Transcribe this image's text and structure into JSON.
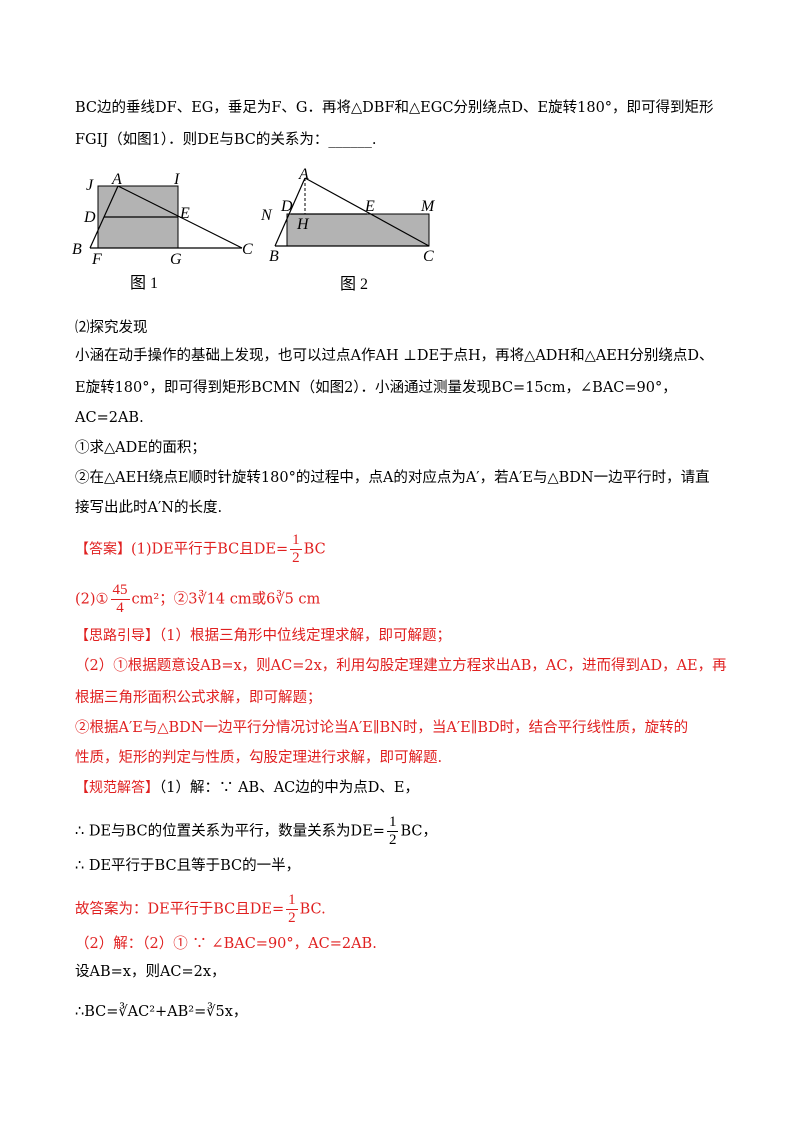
{
  "lines": {
    "l1": "BC边的垂线DF、EG，垂足为F、G．再将△DBF和△EGC分别绕点D、E旋转180°，即可得到矩形",
    "l2": "FGIJ（如图1）．则DE与BC的关系为：______.",
    "l3": "⑵探究发现",
    "l4": "小涵在动手操作的基础上发现，也可以过点A作AH ⊥DE于点H，再将△ADH和△AEH分别绕点D、",
    "l5": "E旋转180°，即可得到矩形BCMN（如图2）．小涵通过测量发现BC=15cm，∠BAC=90°，",
    "l6": "AC=2AB.",
    "l7": "①求△ADE的面积；",
    "l8": "②在△AEH绕点E顺时针旋转180°的过程中，点A的对应点为A′，若A′E与△BDN一边平行时，请直",
    "l9": "接写出此时A′N的长度.",
    "answer_tag": "【答案】",
    "answer1": "(1)DE平行于BC且DE=",
    "answer1_frac_num": "1",
    "answer1_frac_den": "2",
    "answer1_tail": "BC",
    "answer2_pre": "(2)①",
    "answer2_frac_num": "45",
    "answer2_frac_den": "4",
    "answer2_tail": "cm²；②3∛14 cm或6∛5 cm",
    "hint_tag": "【思路引导】",
    "hint1": "（1）根据三角形中位线定理求解，即可解题；",
    "hint2": "（2）①根据题意设AB=x，则AC=2x，利用勾股定理建立方程求出AB，AC，进而得到AD，AE，再",
    "hint3": "根据三角形面积公式求解，即可解题；",
    "hint4": "②根据A′E与△BDN一边平行分情况讨论当A′E∥BN时，当A′E∥BD时，结合平行线性质，旋转的",
    "hint5": "性质，矩形的判定与性质，勾股定理进行求解，即可解题.",
    "sol_tag": "【规范解答】",
    "sol1": "（1）解：∵ AB、AC边的中为点D、E，",
    "sol2": "∴ DE与BC的位置关系为平行，数量关系为DE=",
    "sol2_num": "1",
    "sol2_den": "2",
    "sol2_tail": "BC，",
    "sol3": "∴ DE平行于BC且等于BC的一半，",
    "sol4": "故答案为：DE平行于BC且DE=",
    "sol4_num": "1",
    "sol4_den": "2",
    "sol4_tail": "BC.",
    "sol5": "（2）解：（2）① ∵ ∠BAC=90°，AC=2AB.",
    "sol6": "设AB=x，则AC=2x，",
    "sol7": "∴BC=∛AC²+AB²=∛5x，"
  },
  "figure1": {
    "caption": "图 1",
    "labels": {
      "J": "J",
      "A": "A",
      "I": "I",
      "D": "D",
      "E": "E",
      "B": "B",
      "F": "F",
      "G": "G",
      "C": "C"
    }
  },
  "figure2": {
    "caption": "图 2",
    "labels": {
      "A": "A",
      "D": "D",
      "E": "E",
      "M": "M",
      "N": "N",
      "H": "H",
      "B": "B",
      "C": "C"
    }
  },
  "colors": {
    "accent": "#e02020",
    "fill": "#b3b3b3"
  }
}
